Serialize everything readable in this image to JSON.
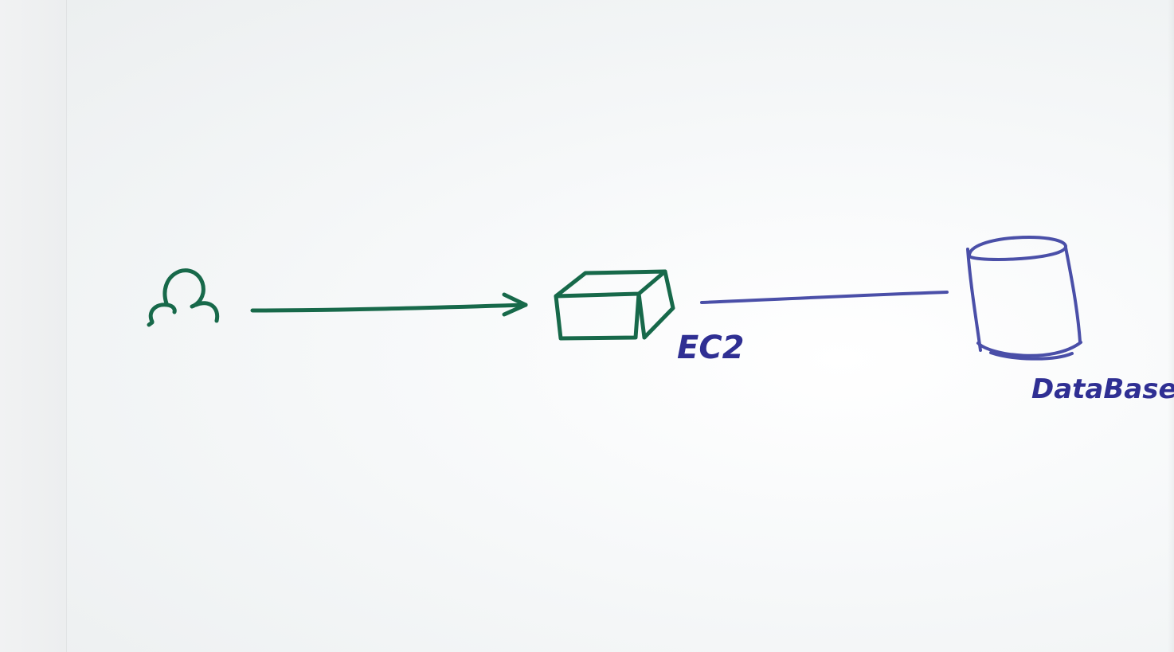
{
  "diagram": {
    "nodes": [
      {
        "id": "user",
        "label": "",
        "icon": "user-icon"
      },
      {
        "id": "ec2",
        "label": "EC2",
        "icon": "server-box-icon"
      },
      {
        "id": "database",
        "label": "DataBase",
        "icon": "database-cylinder-icon"
      }
    ],
    "edges": [
      {
        "from": "user",
        "to": "ec2",
        "style": "arrow"
      },
      {
        "from": "ec2",
        "to": "database",
        "style": "line"
      }
    ],
    "colors": {
      "green_marker": "#17694a",
      "blue_marker": "#4a4fa8",
      "whiteboard": "#f6f8f9"
    }
  }
}
